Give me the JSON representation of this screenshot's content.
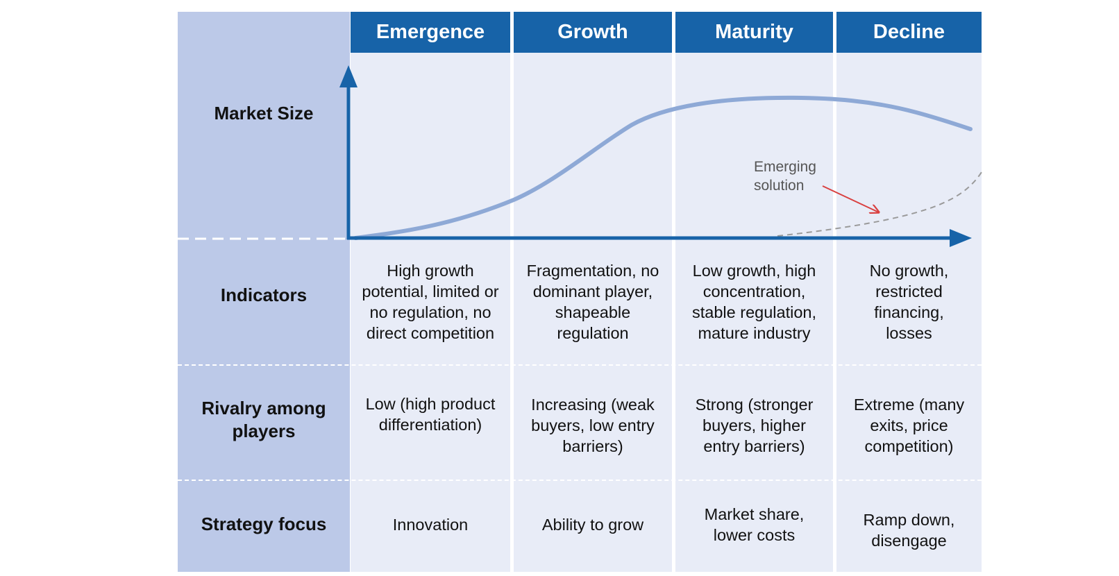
{
  "stages": [
    "Emergence",
    "Growth",
    "Maturity",
    "Decline"
  ],
  "row_labels": {
    "market_size": "Market Size",
    "indicators": "Indicators",
    "rivalry": [
      "Rivalry among",
      "players"
    ],
    "strategy": "Strategy focus"
  },
  "indicators": [
    [
      "High growth",
      "potential, limited or",
      "no regulation, no",
      "direct competition"
    ],
    [
      "Fragmentation, no",
      "dominant player,",
      "shapeable",
      "regulation"
    ],
    [
      "Low growth, high",
      "concentration,",
      "stable regulation,",
      "mature industry"
    ],
    [
      "No growth,",
      "restricted",
      "financing,",
      "losses"
    ]
  ],
  "rivalry": [
    [
      "Low (high product",
      "differentiation)"
    ],
    [
      "Increasing (weak",
      "buyers, low entry",
      "barriers)"
    ],
    [
      "Strong (stronger",
      "buyers, higher",
      "entry barriers)"
    ],
    [
      "Extreme (many",
      "exits, price",
      "competition)"
    ]
  ],
  "strategy": [
    [
      "Innovation"
    ],
    [
      "Ability to grow"
    ],
    [
      "Market share,",
      "lower costs"
    ],
    [
      "Ramp down,",
      "disengage"
    ]
  ],
  "annotation": [
    "Emerging",
    "solution"
  ],
  "colors": {
    "header_blue": "#1763a8",
    "label_column": "#bcc9e8",
    "cell_background": "#e8ecf7",
    "market_curve": "#8ea9d6",
    "emerging_curve": "#9a9a9a",
    "arrow_red": "#d94040"
  }
}
